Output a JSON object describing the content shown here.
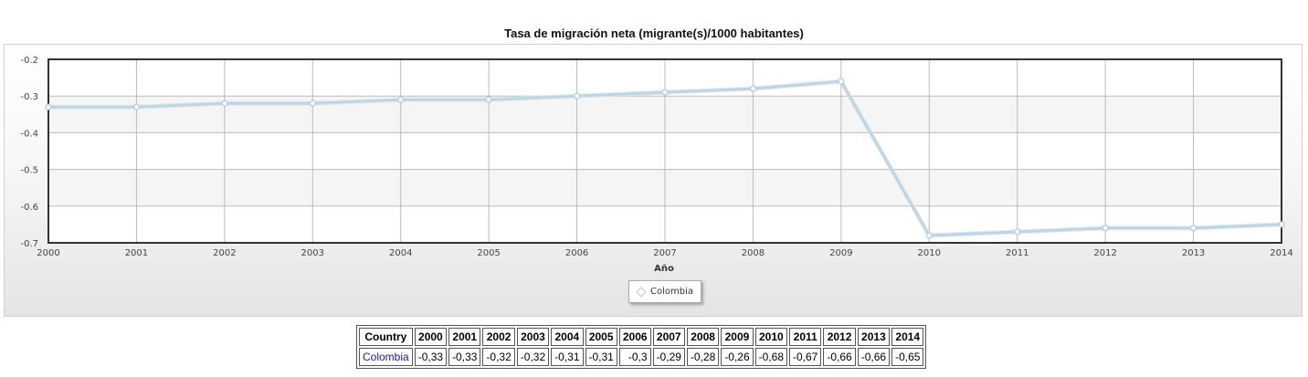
{
  "chart_data": {
    "type": "line",
    "title": "Tasa de migración neta (migrante(s)/1000 habitantes)",
    "xlabel": "Año",
    "ylabel": "",
    "x": [
      2000,
      2001,
      2002,
      2003,
      2004,
      2005,
      2006,
      2007,
      2008,
      2009,
      2010,
      2011,
      2012,
      2013,
      2014
    ],
    "x_tick_labels": [
      "2000",
      "2001",
      "2002",
      "2003",
      "2004",
      "2005",
      "2006",
      "2007",
      "2008",
      "2009",
      "2010",
      "2011",
      "2012",
      "2013",
      "2014"
    ],
    "xlim": [
      2000,
      2014
    ],
    "ylim": [
      -0.7,
      -0.2
    ],
    "y_ticks": [
      -0.2,
      -0.3,
      -0.4,
      -0.5,
      -0.6,
      -0.7
    ],
    "y_tick_labels": [
      "-0.2",
      "-0.3",
      "-0.4",
      "-0.5",
      "-0.6",
      "-0.7"
    ],
    "grid": true,
    "legend_position": "bottom-center",
    "series": [
      {
        "name": "Colombia",
        "color": "#bcd6e6",
        "values": [
          -0.33,
          -0.33,
          -0.32,
          -0.32,
          -0.31,
          -0.31,
          -0.3,
          -0.29,
          -0.28,
          -0.26,
          -0.68,
          -0.67,
          -0.66,
          -0.66,
          -0.65
        ]
      }
    ]
  },
  "table": {
    "header_label": "Country",
    "years": [
      "2000",
      "2001",
      "2002",
      "2003",
      "2004",
      "2005",
      "2006",
      "2007",
      "2008",
      "2009",
      "2010",
      "2011",
      "2012",
      "2013",
      "2014"
    ],
    "rows": [
      {
        "country": "Colombia",
        "values": [
          "-0,33",
          "-0,33",
          "-0,32",
          "-0,32",
          "-0,31",
          "-0,31",
          "-0,3",
          "-0,29",
          "-0,28",
          "-0,26",
          "-0,68",
          "-0,67",
          "-0,66",
          "-0,66",
          "-0,65"
        ]
      }
    ]
  }
}
